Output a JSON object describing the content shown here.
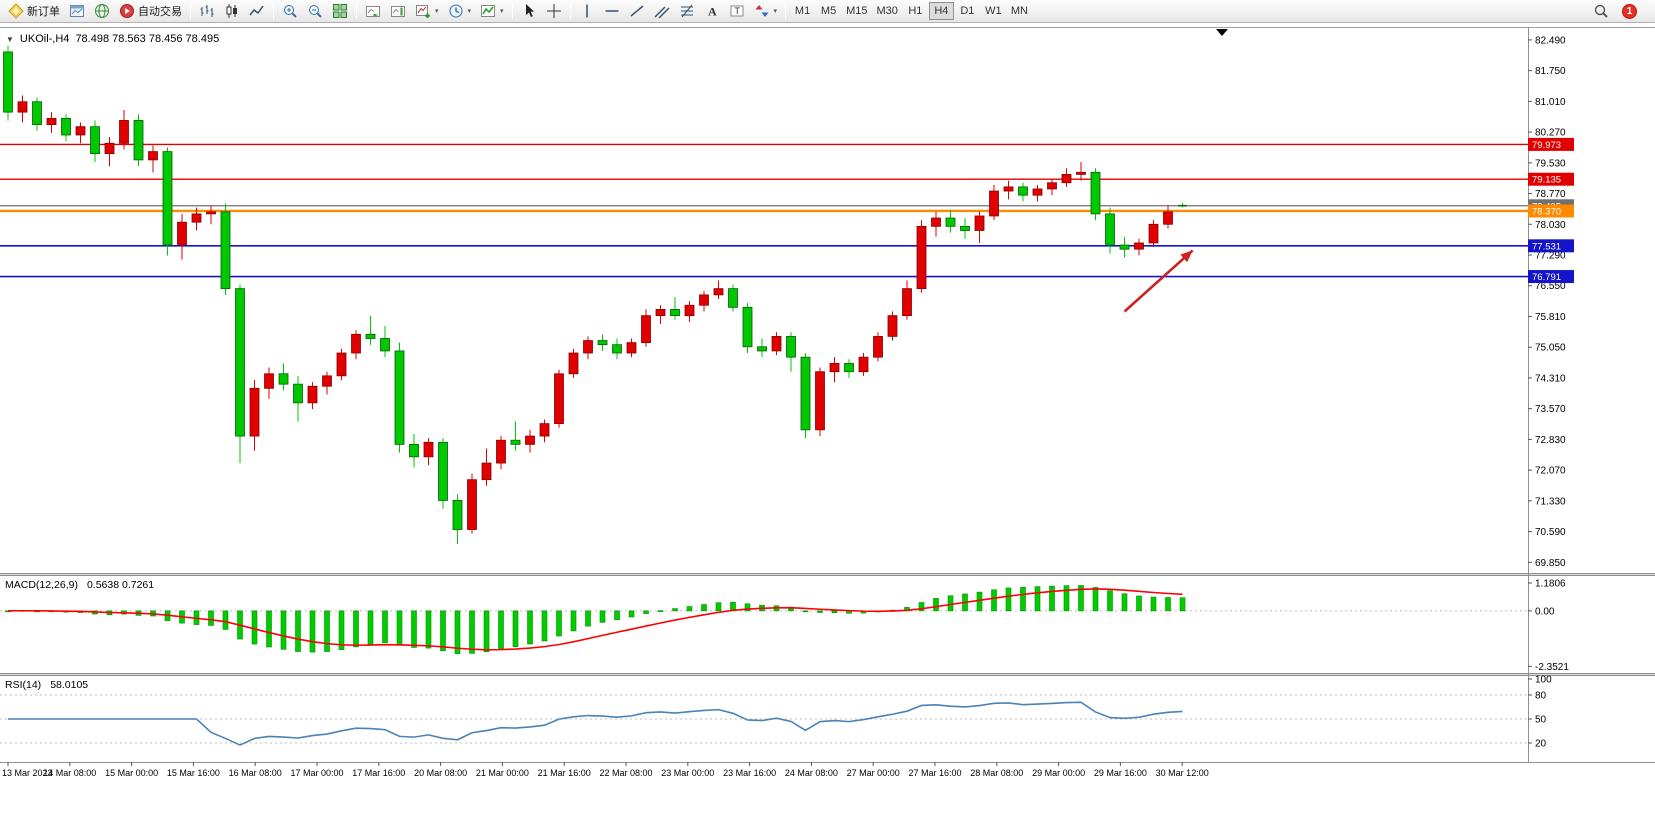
{
  "toolbar": {
    "items": [
      {
        "name": "new-order-button",
        "icon": "new-order",
        "label": "新订单"
      },
      {
        "name": "chart-window-button",
        "icon": "window"
      },
      {
        "name": "community-button",
        "icon": "globe"
      },
      {
        "name": "auto-trading-button",
        "icon": "autotrade",
        "label": "自动交易"
      },
      {
        "sep": true
      },
      {
        "name": "bar-chart-button",
        "icon": "bars"
      },
      {
        "name": "candlestick-button",
        "icon": "candles"
      },
      {
        "name": "line-chart-button",
        "icon": "linechart"
      },
      {
        "sep": true
      },
      {
        "name": "zoom-in-button",
        "icon": "zoom-in"
      },
      {
        "name": "zoom-out-button",
        "icon": "zoom-out"
      },
      {
        "name": "tile-windows-button",
        "icon": "tile"
      },
      {
        "sep": true
      },
      {
        "name": "auto-scroll-button",
        "icon": "autoscroll"
      },
      {
        "name": "chart-shift-button",
        "icon": "chartshift"
      },
      {
        "name": "new-chart-button",
        "icon": "newchart",
        "dropdown": true
      },
      {
        "name": "profiles-button",
        "icon": "profiles",
        "dropdown": true
      },
      {
        "name": "indicators-button",
        "icon": "indicators",
        "dropdown": true
      },
      {
        "sep": true
      },
      {
        "name": "cursor-button",
        "icon": "cursor"
      },
      {
        "name": "crosshair-button",
        "icon": "crosshair"
      },
      {
        "sep": true
      },
      {
        "name": "vertical-line-button",
        "icon": "vline"
      },
      {
        "name": "horizontal-line-button",
        "icon": "hline"
      },
      {
        "name": "trendline-button",
        "icon": "trendline"
      },
      {
        "name": "channel-button",
        "icon": "channel"
      },
      {
        "name": "fibonacci-button",
        "icon": "fibo"
      },
      {
        "name": "text-button",
        "icon": "text"
      },
      {
        "name": "text-label-button",
        "icon": "label"
      },
      {
        "name": "arrows-button",
        "icon": "arrows",
        "dropdown": true
      },
      {
        "sep": true
      }
    ],
    "timeframes": [
      "M1",
      "M5",
      "M15",
      "M30",
      "H1",
      "H4",
      "D1",
      "W1",
      "MN"
    ],
    "active_timeframe": "H4",
    "right_items": [
      {
        "name": "search-button",
        "icon": "search"
      }
    ],
    "notification_count": "1"
  },
  "chart": {
    "title": "UKOil-,H4",
    "ohlc": "78.498 78.563 78.456 78.495"
  },
  "price_axis_ticks": [
    "82.490",
    "81.750",
    "81.010",
    "80.270",
    "79.530",
    "78.770",
    "78.030",
    "77.290",
    "76.550",
    "75.810",
    "75.050",
    "74.310",
    "73.570",
    "72.830",
    "72.070",
    "71.330",
    "70.590",
    "69.850"
  ],
  "time_axis_labels": [
    "13 Mar 2023",
    "14 Mar 08:00",
    "15 Mar 00:00",
    "15 Mar 16:00",
    "16 Mar 08:00",
    "17 Mar 00:00",
    "17 Mar 16:00",
    "20 Mar 08:00",
    "21 Mar 00:00",
    "21 Mar 16:00",
    "22 Mar 08:00",
    "23 Mar 00:00",
    "23 Mar 16:00",
    "24 Mar 08:00",
    "27 Mar 00:00",
    "27 Mar 16:00",
    "28 Mar 08:00",
    "29 Mar 00:00",
    "29 Mar 16:00",
    "30 Mar 12:00"
  ],
  "levels": [
    {
      "price": 79.973,
      "label": "79.973",
      "color": "#e00000",
      "lw": 1.4
    },
    {
      "price": 79.135,
      "label": "79.135",
      "color": "#e00000",
      "lw": 1.4
    },
    {
      "price": 78.495,
      "label": "78.495",
      "color": "#707070",
      "lw": 1.2
    },
    {
      "price": 78.37,
      "label": "78.370",
      "color": "#ff8a00",
      "lw": 2.4
    },
    {
      "price": 77.531,
      "label": "77.531",
      "color": "#1414c8",
      "lw": 1.6
    },
    {
      "price": 76.791,
      "label": "76.791",
      "color": "#1414c8",
      "lw": 1.6
    }
  ],
  "annotation_arrow": {
    "from_index": 77,
    "from_price": 75.95,
    "to_index": 81.7,
    "to_price": 77.42,
    "color": "#cc2222"
  },
  "macd": {
    "name": "MACD(12,26,9)",
    "values": "0.5638 0.7261",
    "axis_labels": [
      {
        "text": "1.1806",
        "value": 1.1806
      },
      {
        "text": "0.00",
        "value": 0
      },
      {
        "text": "-2.3521",
        "value": -2.3521
      }
    ],
    "histogram_color": "#00cc00",
    "signal_color": "#ff0000"
  },
  "rsi": {
    "name": "RSI(14)",
    "value": "58.0105",
    "axis_labels": [
      {
        "text": "100",
        "value": 100
      },
      {
        "text": "80",
        "value": 80
      },
      {
        "text": "50",
        "value": 50
      },
      {
        "text": "20",
        "value": 20
      }
    ],
    "levels": [
      80,
      50,
      20
    ],
    "line_color": "#4a82b8"
  },
  "chart_data": {
    "type": "candlestick",
    "symbol": "UKOil-",
    "timeframe": "H4",
    "title": "UKOil-,H4",
    "ohlc_display": "78.498 78.563 78.456 78.495",
    "up_color": "#e00000",
    "down_color": "#00c800",
    "visible_price_range": [
      69.85,
      82.49
    ],
    "horizontal_levels": [
      79.973,
      79.135,
      78.495,
      78.37,
      77.531,
      76.791
    ],
    "indicators": [
      {
        "name": "MACD(12,26,9)",
        "values": [
          0.5638,
          0.7261
        ]
      },
      {
        "name": "RSI(14)",
        "values": [
          58.0105
        ]
      }
    ],
    "candles": [
      [
        82.2,
        82.35,
        80.55,
        80.75
      ],
      [
        80.75,
        81.15,
        80.5,
        81.0
      ],
      [
        81.0,
        81.1,
        80.3,
        80.45
      ],
      [
        80.45,
        80.75,
        80.25,
        80.6
      ],
      [
        80.6,
        80.7,
        80.05,
        80.2
      ],
      [
        80.2,
        80.5,
        80.0,
        80.4
      ],
      [
        80.4,
        80.55,
        79.55,
        79.75
      ],
      [
        79.75,
        80.15,
        79.45,
        80.0
      ],
      [
        80.0,
        80.8,
        79.85,
        80.55
      ],
      [
        80.55,
        80.7,
        79.45,
        79.6
      ],
      [
        79.6,
        79.95,
        79.3,
        79.8
      ],
      [
        79.8,
        79.9,
        77.3,
        77.55
      ],
      [
        77.55,
        78.3,
        77.2,
        78.1
      ],
      [
        78.1,
        78.45,
        77.9,
        78.3
      ],
      [
        78.3,
        78.5,
        78.05,
        78.35
      ],
      [
        78.35,
        78.55,
        76.35,
        76.5
      ],
      [
        76.5,
        76.6,
        72.3,
        72.95
      ],
      [
        72.95,
        74.3,
        72.6,
        74.1
      ],
      [
        74.1,
        74.6,
        73.85,
        74.45
      ],
      [
        74.45,
        74.7,
        74.05,
        74.2
      ],
      [
        74.2,
        74.4,
        73.3,
        73.75
      ],
      [
        73.75,
        74.25,
        73.6,
        74.15
      ],
      [
        74.15,
        74.5,
        73.95,
        74.4
      ],
      [
        74.4,
        75.05,
        74.3,
        74.95
      ],
      [
        74.95,
        75.5,
        74.8,
        75.4
      ],
      [
        75.4,
        75.85,
        75.15,
        75.3
      ],
      [
        75.3,
        75.6,
        74.85,
        75.0
      ],
      [
        75.0,
        75.2,
        72.55,
        72.75
      ],
      [
        72.75,
        73.0,
        72.2,
        72.45
      ],
      [
        72.45,
        72.9,
        72.25,
        72.8
      ],
      [
        72.8,
        72.9,
        71.2,
        71.4
      ],
      [
        71.4,
        71.55,
        70.35,
        70.7
      ],
      [
        70.7,
        72.05,
        70.6,
        71.9
      ],
      [
        71.9,
        72.65,
        71.75,
        72.3
      ],
      [
        72.3,
        72.95,
        72.15,
        72.85
      ],
      [
        72.85,
        73.3,
        72.6,
        72.75
      ],
      [
        72.75,
        73.1,
        72.55,
        72.95
      ],
      [
        72.95,
        73.35,
        72.8,
        73.25
      ],
      [
        73.25,
        74.55,
        73.15,
        74.45
      ],
      [
        74.45,
        75.05,
        74.35,
        74.95
      ],
      [
        74.95,
        75.35,
        74.8,
        75.25
      ],
      [
        75.25,
        75.4,
        75.0,
        75.15
      ],
      [
        75.15,
        75.3,
        74.8,
        74.95
      ],
      [
        74.95,
        75.3,
        74.85,
        75.2
      ],
      [
        75.2,
        76.0,
        75.1,
        75.85
      ],
      [
        75.85,
        76.1,
        75.65,
        76.0
      ],
      [
        76.0,
        76.3,
        75.75,
        75.85
      ],
      [
        75.85,
        76.2,
        75.7,
        76.1
      ],
      [
        76.1,
        76.45,
        75.95,
        76.35
      ],
      [
        76.35,
        76.7,
        76.25,
        76.5
      ],
      [
        76.5,
        76.6,
        75.95,
        76.05
      ],
      [
        76.05,
        76.15,
        74.95,
        75.1
      ],
      [
        75.1,
        75.3,
        74.85,
        75.0
      ],
      [
        75.0,
        75.45,
        74.9,
        75.35
      ],
      [
        75.35,
        75.45,
        74.5,
        74.85
      ],
      [
        74.85,
        74.95,
        72.9,
        73.1
      ],
      [
        73.1,
        74.6,
        72.95,
        74.5
      ],
      [
        74.5,
        74.85,
        74.25,
        74.7
      ],
      [
        74.7,
        74.8,
        74.35,
        74.5
      ],
      [
        74.5,
        74.95,
        74.4,
        74.85
      ],
      [
        74.85,
        75.45,
        74.75,
        75.35
      ],
      [
        75.35,
        75.95,
        75.25,
        75.85
      ],
      [
        75.85,
        76.7,
        75.75,
        76.5
      ],
      [
        76.5,
        78.15,
        76.4,
        78.0
      ],
      [
        78.0,
        78.35,
        77.75,
        78.2
      ],
      [
        78.2,
        78.4,
        77.85,
        78.0
      ],
      [
        78.0,
        78.2,
        77.7,
        77.9
      ],
      [
        77.9,
        78.35,
        77.6,
        78.25
      ],
      [
        78.25,
        79.0,
        78.15,
        78.85
      ],
      [
        78.85,
        79.1,
        78.65,
        78.95
      ],
      [
        78.95,
        79.05,
        78.6,
        78.75
      ],
      [
        78.75,
        79.0,
        78.6,
        78.9
      ],
      [
        78.9,
        79.15,
        78.75,
        79.05
      ],
      [
        79.05,
        79.4,
        78.95,
        79.25
      ],
      [
        79.25,
        79.55,
        79.1,
        79.3
      ],
      [
        79.3,
        79.4,
        78.15,
        78.3
      ],
      [
        78.3,
        78.45,
        77.35,
        77.55
      ],
      [
        77.55,
        77.75,
        77.25,
        77.45
      ],
      [
        77.45,
        77.7,
        77.3,
        77.6
      ],
      [
        77.6,
        78.15,
        77.5,
        78.05
      ],
      [
        78.05,
        78.5,
        77.95,
        78.35
      ],
      [
        78.498,
        78.563,
        78.456,
        78.495
      ]
    ]
  }
}
